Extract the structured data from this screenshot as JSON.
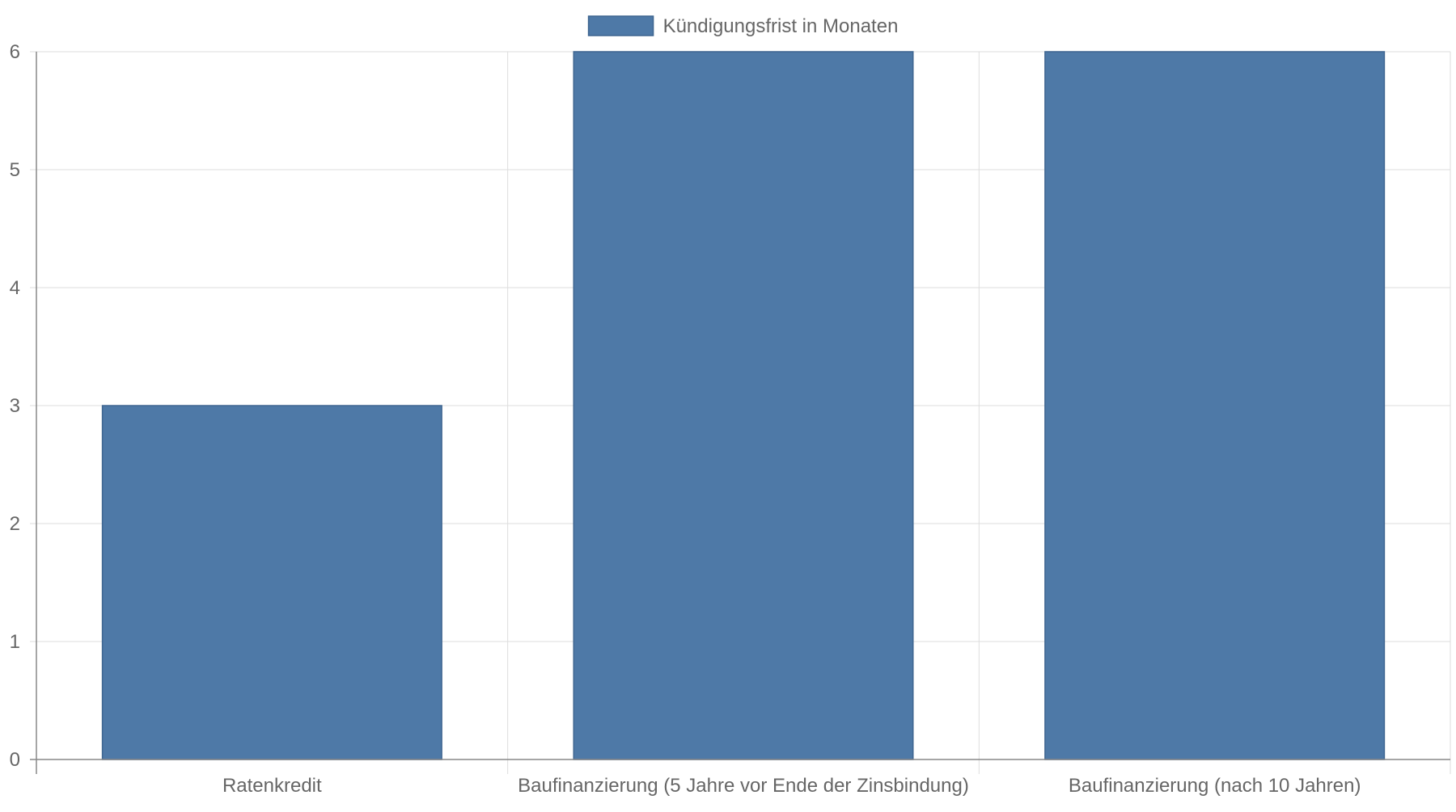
{
  "chart_data": {
    "type": "bar",
    "categories": [
      "Ratenkredit",
      "Baufinanzierung (5 Jahre vor Ende der Zinsbindung)",
      "Baufinanzierung (nach 10 Jahren)"
    ],
    "series": [
      {
        "name": "Kündigungsfrist in Monaten",
        "values": [
          3,
          6,
          6
        ],
        "color": "#4e79a7"
      }
    ],
    "ylim": [
      0,
      6
    ],
    "yticks": [
      0,
      1,
      2,
      3,
      4,
      5,
      6
    ],
    "grid": true,
    "legend": "top-center"
  }
}
